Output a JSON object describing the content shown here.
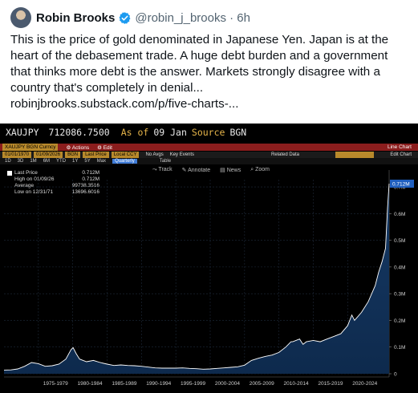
{
  "tweet": {
    "author_name": "Robin Brooks",
    "handle_time": "@robin_j_brooks · 6h",
    "text": "This is the price of gold denominated in Japanese Yen. Japan is at the\nheart of the debasement trade. A huge debt burden and a government\nthat thinks more debt is the answer. Markets strongly disagree with a\ncountry that's completely in denial...\nrobinjbrooks.substack.com/p/five-charts-...",
    "verified_color": "#1d9bf0"
  },
  "terminal": {
    "ticker": "XAUJPY",
    "price": "712086.7500",
    "as_of_label": "As of",
    "as_of_date": "09 Jan",
    "source_label": "Source",
    "source_value": "BGN",
    "bar1": {
      "security": "XAUJPY BGN Curncy",
      "actions": "Actions",
      "edit": "Edit",
      "chart_type": "Line Chart"
    },
    "bar2": {
      "start_date": "01/01/1970",
      "end_date": "01/09/2026",
      "field1": "BGN",
      "field2": "Last Price",
      "field3": "Local CCY",
      "no_avgs": "No Avgs",
      "key_events": "Key Events",
      "related_data": "Related Data",
      "edit_chart": "Edit Chart"
    },
    "periods": [
      "1D",
      "3D",
      "1M",
      "6M",
      "YTD",
      "1Y",
      "5Y",
      "Max"
    ],
    "selected_period": "Quarterly",
    "table_label": "Table",
    "toolbar": [
      "Track",
      "Annotate",
      "News",
      "Zoom"
    ],
    "legend": [
      {
        "label": "Last Price",
        "value": "0.712M"
      },
      {
        "label": "High on 01/09/26",
        "value": "0.712M"
      },
      {
        "label": "Average",
        "value": "99738.3516"
      },
      {
        "label": "Low on 12/31/71",
        "value": "13696.6016"
      }
    ],
    "colors": {
      "bg": "#000000",
      "area_fill": "#0e2a4d",
      "line": "#ffffff",
      "grid": "#1e2a3a",
      "last_label_bg": "#1f5fbf",
      "accent": "#e7b54a"
    }
  },
  "chart_data": {
    "type": "area",
    "y_unit": "JPY",
    "yticks": [
      "0",
      "0.1M",
      "0.2M",
      "0.3M",
      "0.4M",
      "0.5M",
      "0.6M",
      "0.7M"
    ],
    "last_value_label": "0.712M",
    "xticks": [
      "1975-1979",
      "1980-1984",
      "1985-1989",
      "1990-1994",
      "1995-1999",
      "2000-2004",
      "2005-2009",
      "2010-2014",
      "2015-2019",
      "2020-2024"
    ],
    "ylim": [
      0,
      712086
    ],
    "x_range": [
      1970,
      2026.03
    ],
    "grid": true,
    "x": [
      1970,
      1971,
      1972,
      1973,
      1974,
      1975,
      1976,
      1977,
      1978,
      1979,
      1979.75,
      1980.05,
      1980.5,
      1981,
      1982,
      1983,
      1984,
      1985,
      1986,
      1987,
      1988,
      1989,
      1990,
      1991,
      1992,
      1993,
      1994,
      1995,
      1996,
      1997,
      1998,
      1999,
      2000,
      2001,
      2002,
      2003,
      2004,
      2005,
      2006,
      2007,
      2008,
      2009,
      2010,
      2011,
      2011.75,
      2012,
      2013,
      2013.5,
      2014,
      2015,
      2016,
      2017,
      2018,
      2019,
      2020,
      2020.6,
      2021,
      2022,
      2023,
      2024,
      2024.5,
      2025,
      2025.5,
      2025.8,
      2026.03
    ],
    "y": [
      13697,
      14500,
      18000,
      28000,
      42000,
      38000,
      28000,
      30000,
      36000,
      55000,
      90000,
      98000,
      75000,
      55000,
      45000,
      50000,
      42000,
      36000,
      31000,
      33000,
      31000,
      30000,
      28000,
      25000,
      22000,
      21000,
      21000,
      21000,
      22000,
      20000,
      19000,
      17000,
      18000,
      20000,
      22000,
      24000,
      26000,
      32000,
      50000,
      58000,
      65000,
      70000,
      80000,
      100000,
      120000,
      120000,
      130000,
      110000,
      120000,
      125000,
      120000,
      130000,
      140000,
      150000,
      180000,
      220000,
      200000,
      230000,
      270000,
      330000,
      380000,
      420000,
      470000,
      620000,
      712086
    ]
  }
}
